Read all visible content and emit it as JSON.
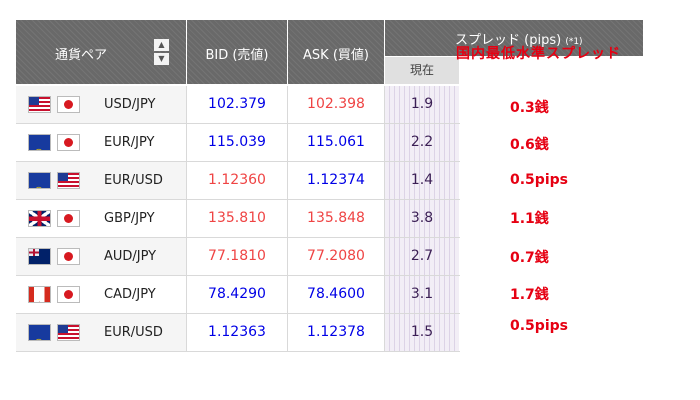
{
  "header": {
    "pair_label": "通貨ペア",
    "bid_label": "BID (売値)",
    "ask_label": "ASK (買値)",
    "spread_label": "スプレッド (pips)",
    "spread_footnote": "(*1)",
    "current_label": "現在",
    "sort_up": "▲",
    "sort_down": "▼"
  },
  "note_header": "国内最低水準スプレッド",
  "rows": [
    {
      "flags": [
        "us-flag-icon",
        "jp-flag-icon"
      ],
      "pair": "USD/JPY",
      "bid": "102.379",
      "ask": "102.398",
      "spread": "1.9",
      "note": "0.3銭"
    },
    {
      "flags": [
        "eu-flag-icon",
        "jp-flag-icon"
      ],
      "pair": "EUR/JPY",
      "bid": "115.039",
      "ask": "115.061",
      "spread": "2.2",
      "note": "0.6銭"
    },
    {
      "flags": [
        "eu-flag-icon",
        "us-flag-icon"
      ],
      "pair": "EUR/USD",
      "bid": "1.12360",
      "ask": "1.12374",
      "spread": "1.4",
      "note": "0.5pips"
    },
    {
      "flags": [
        "gb-flag-icon",
        "jp-flag-icon"
      ],
      "pair": "GBP/JPY",
      "bid": "135.810",
      "ask": "135.848",
      "spread": "3.8",
      "note": "1.1銭"
    },
    {
      "flags": [
        "au-flag-icon",
        "jp-flag-icon"
      ],
      "pair": "AUD/JPY",
      "bid": "77.1810",
      "ask": "77.2080",
      "spread": "2.7",
      "note": "0.7銭"
    },
    {
      "flags": [
        "ca-flag-icon",
        "jp-flag-icon"
      ],
      "pair": "CAD/JPY",
      "bid": "78.4290",
      "ask": "78.4600",
      "spread": "3.1",
      "note": "1.7銭"
    },
    {
      "flags": [
        "eu-flag-icon",
        "us-flag-icon"
      ],
      "pair": "EUR/USD",
      "bid": "1.12363",
      "ask": "1.12378",
      "spread": "1.5",
      "note": "0.5pips"
    }
  ],
  "colors": {
    "header_bg": "#696969",
    "bid_up": "#0000e6",
    "price_down": "#ef4444",
    "note": "#e60012",
    "spread_text": "#3b1f55"
  }
}
